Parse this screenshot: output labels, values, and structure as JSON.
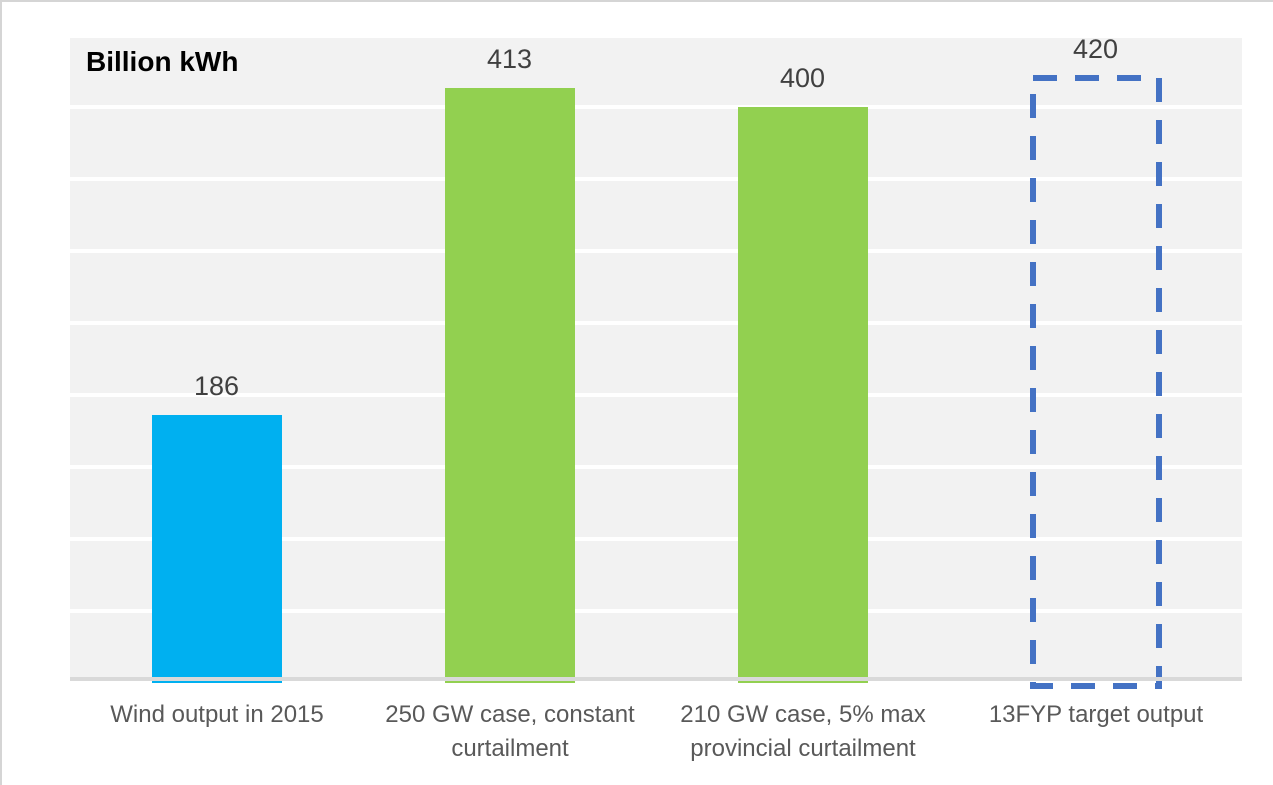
{
  "window": {
    "background": "#FFFFFF",
    "edge_border_color": "#D5D5D5"
  },
  "chart_data": {
    "type": "bar",
    "title": "Billion kWh",
    "ylabel": "Billion kWh",
    "xlabel": "",
    "categories": [
      "Wind output in 2015",
      "250 GW case, constant curtailment",
      "210 GW case, 5% max provincial curtailment",
      "13FYP target output"
    ],
    "values": [
      186,
      413,
      400,
      420
    ],
    "data_labels": [
      "186",
      "413",
      "400",
      "420"
    ],
    "bar_styles": [
      "solid",
      "solid",
      "solid",
      "dashed-outline"
    ],
    "bar_colors": [
      "#00B0F0",
      "#92D050",
      "#92D050",
      "#4472C4"
    ],
    "ylim": [
      0,
      450
    ],
    "gridline_interval": 50,
    "grid": "horizontal-white-on-gray",
    "legend_position": "none",
    "y_tick_labels_visible": false,
    "plot_background": "#F2F2F2",
    "gridline_color": "#FFFFFF",
    "axis_line_color": "#D9D9D9",
    "data_label_color": "#404040",
    "category_label_color": "#595959"
  }
}
